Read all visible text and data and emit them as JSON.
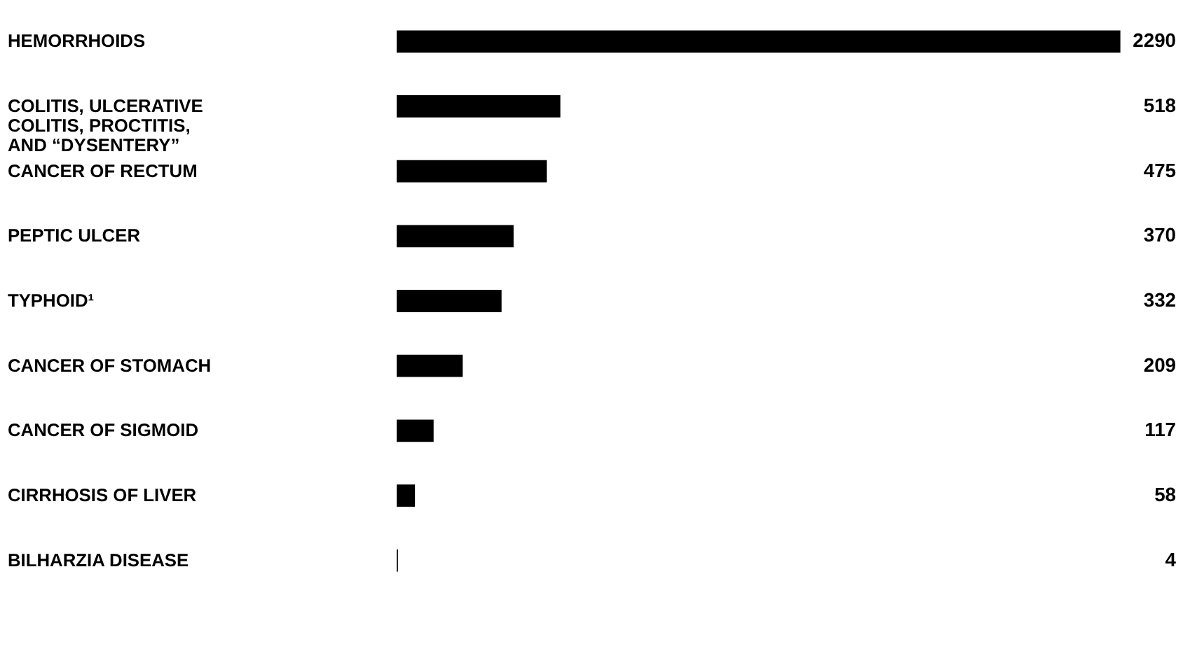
{
  "chart_data": {
    "type": "bar",
    "orientation": "horizontal",
    "data_labels": true,
    "grid": false,
    "categories": [
      "HEMORRHOIDS",
      "COLITIS, ULCERATIVE\nCOLITIS, PROCTITIS,\nAND “DYSENTERY”",
      "CANCER OF RECTUM",
      "PEPTIC ULCER",
      "TYPHOID¹",
      "CANCER OF STOMACH",
      "CANCER OF SIGMOID",
      "CIRRHOSIS OF LIVER",
      "BILHARZIA DISEASE"
    ],
    "values": [
      2290,
      518,
      475,
      370,
      332,
      209,
      117,
      58,
      4
    ],
    "color": "#000000"
  }
}
